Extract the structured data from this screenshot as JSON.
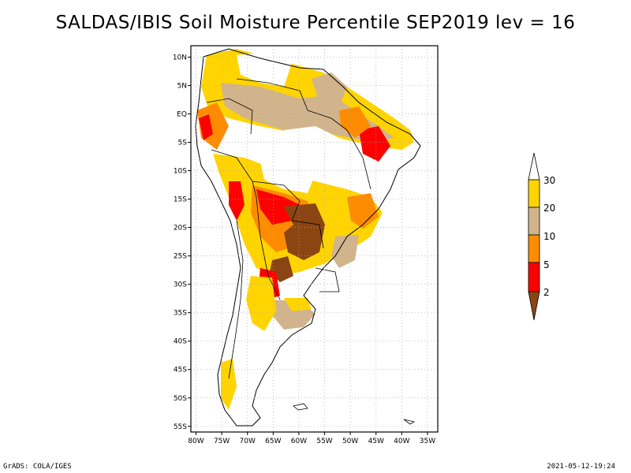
{
  "title": "SALDAS/IBIS Soil Moisture Percentile SEP2019 lev = 16",
  "footer": {
    "left": "GrADS: COLA/IGES",
    "right": "2021-05-12-19:24"
  },
  "map": {
    "lon_range": [
      -81,
      -33
    ],
    "lat_range": [
      -56,
      12
    ],
    "lon_ticks": [
      "80W",
      "75W",
      "70W",
      "65W",
      "60W",
      "55W",
      "50W",
      "45W",
      "40W",
      "35W"
    ],
    "lat_ticks": [
      "10N",
      "5N",
      "EQ",
      "5S",
      "10S",
      "15S",
      "20S",
      "25S",
      "30S",
      "35S",
      "40S",
      "45S",
      "50S",
      "55S"
    ],
    "grid": "dotted"
  },
  "colorbar": {
    "levels": [
      "30",
      "20",
      "10",
      "5",
      "2"
    ],
    "colors": {
      "above_30": "#ffffff",
      "20_30": "#ffd400",
      "10_20": "#d2b48c",
      "5_10": "#ff8c00",
      "2_5": "#ff0000",
      "below_2": "#8b4513"
    }
  },
  "colors": {
    "coast": "#000000",
    "brown": "#8b4513",
    "red": "#ff0000",
    "orange": "#ff8c00",
    "tan": "#d2b48c",
    "yellow": "#ffd400",
    "white": "#ffffff"
  }
}
